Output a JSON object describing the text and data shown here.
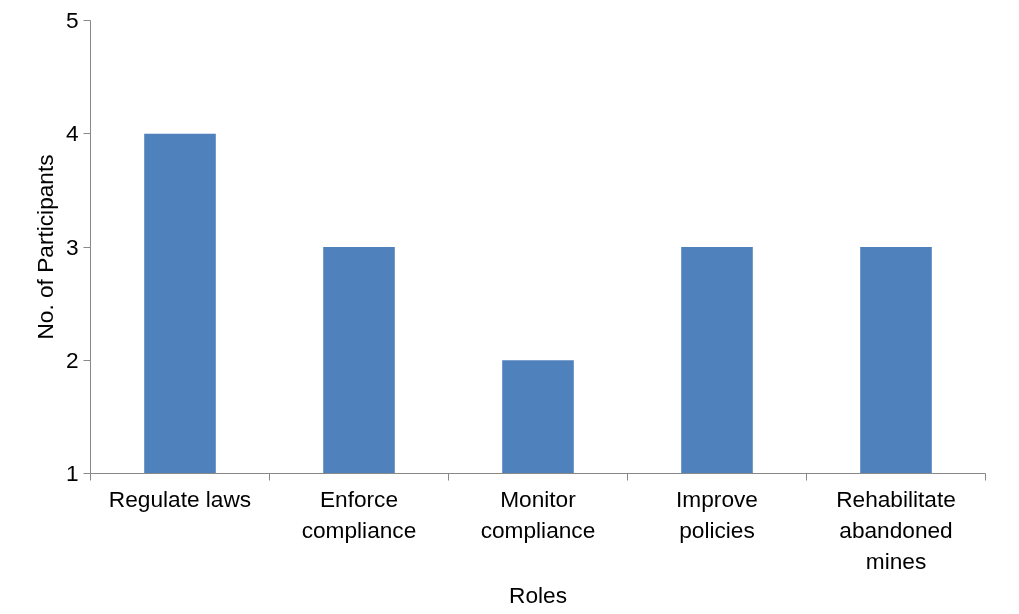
{
  "chart_data": {
    "type": "bar",
    "xlabel": "Roles",
    "ylabel": "No. of Participants",
    "categories": [
      "Regulate laws",
      "Enforce compliance",
      "Monitor compliance",
      "Improve policies",
      "Rehabilitate abandoned mines"
    ],
    "values": [
      4,
      3,
      2,
      3,
      3
    ],
    "color": "#4f81bd",
    "ylim": [
      1,
      5
    ],
    "yticks": [
      1,
      2,
      3,
      4,
      5
    ],
    "grid": false
  }
}
